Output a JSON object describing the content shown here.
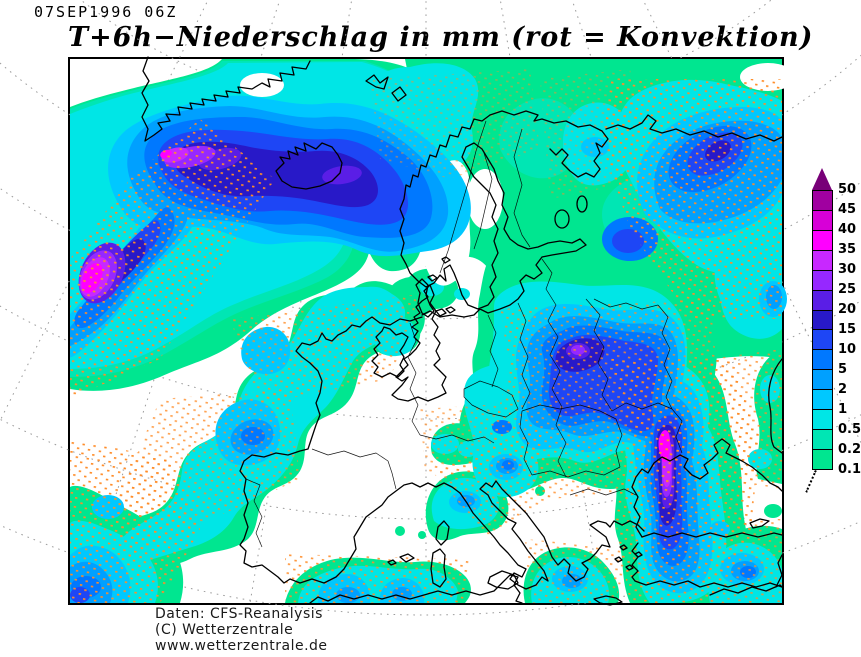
{
  "header": {
    "timestamp": "07SEP1996 06Z",
    "title": "T+6h−Niederschlag in mm (rot = Konvektion)"
  },
  "legend": {
    "unit": "mm",
    "above_max_color": "#780078",
    "levels": [
      {
        "value": "50",
        "color": "#A000A0"
      },
      {
        "value": "45",
        "color": "#D700D7"
      },
      {
        "value": "40",
        "color": "#FF00FF"
      },
      {
        "value": "35",
        "color": "#C828FF"
      },
      {
        "value": "30",
        "color": "#9628FF"
      },
      {
        "value": "25",
        "color": "#5A1EE6"
      },
      {
        "value": "20",
        "color": "#2819C8"
      },
      {
        "value": "15",
        "color": "#1E46F5"
      },
      {
        "value": "10",
        "color": "#0078FF"
      },
      {
        "value": "5",
        "color": "#00A0FF"
      },
      {
        "value": "2",
        "color": "#00C8FF"
      },
      {
        "value": "1",
        "color": "#00E6E6"
      },
      {
        "value": "0.5",
        "color": "#00E6B4"
      },
      {
        "value": "0.2",
        "color": "#00E690"
      },
      {
        "value": "0.1",
        "color": null
      }
    ]
  },
  "map": {
    "colors": {
      "lv1": "#00E690",
      "lv2": "#00E6B4",
      "lv3": "#00E6E6",
      "lv4": "#00C8FF",
      "lv5": "#00A0FF",
      "lv6": "#0078FF",
      "lv7": "#1E46F5",
      "lv8": "#2819C8",
      "lv9": "#5A1EE6",
      "lv10": "#9628FF",
      "lv11": "#C828FF",
      "lv12": "#FF00FF",
      "stipple": "#FF8C28",
      "coast": "#000000",
      "border": "#000000",
      "graticule": "#9C9C9C",
      "sea": "#FFFFFF"
    }
  },
  "footer": {
    "lines": [
      "Daten: CFS-Reanalysis",
      "(C) Wetterzentrale",
      "www.wetterzentrale.de"
    ]
  }
}
